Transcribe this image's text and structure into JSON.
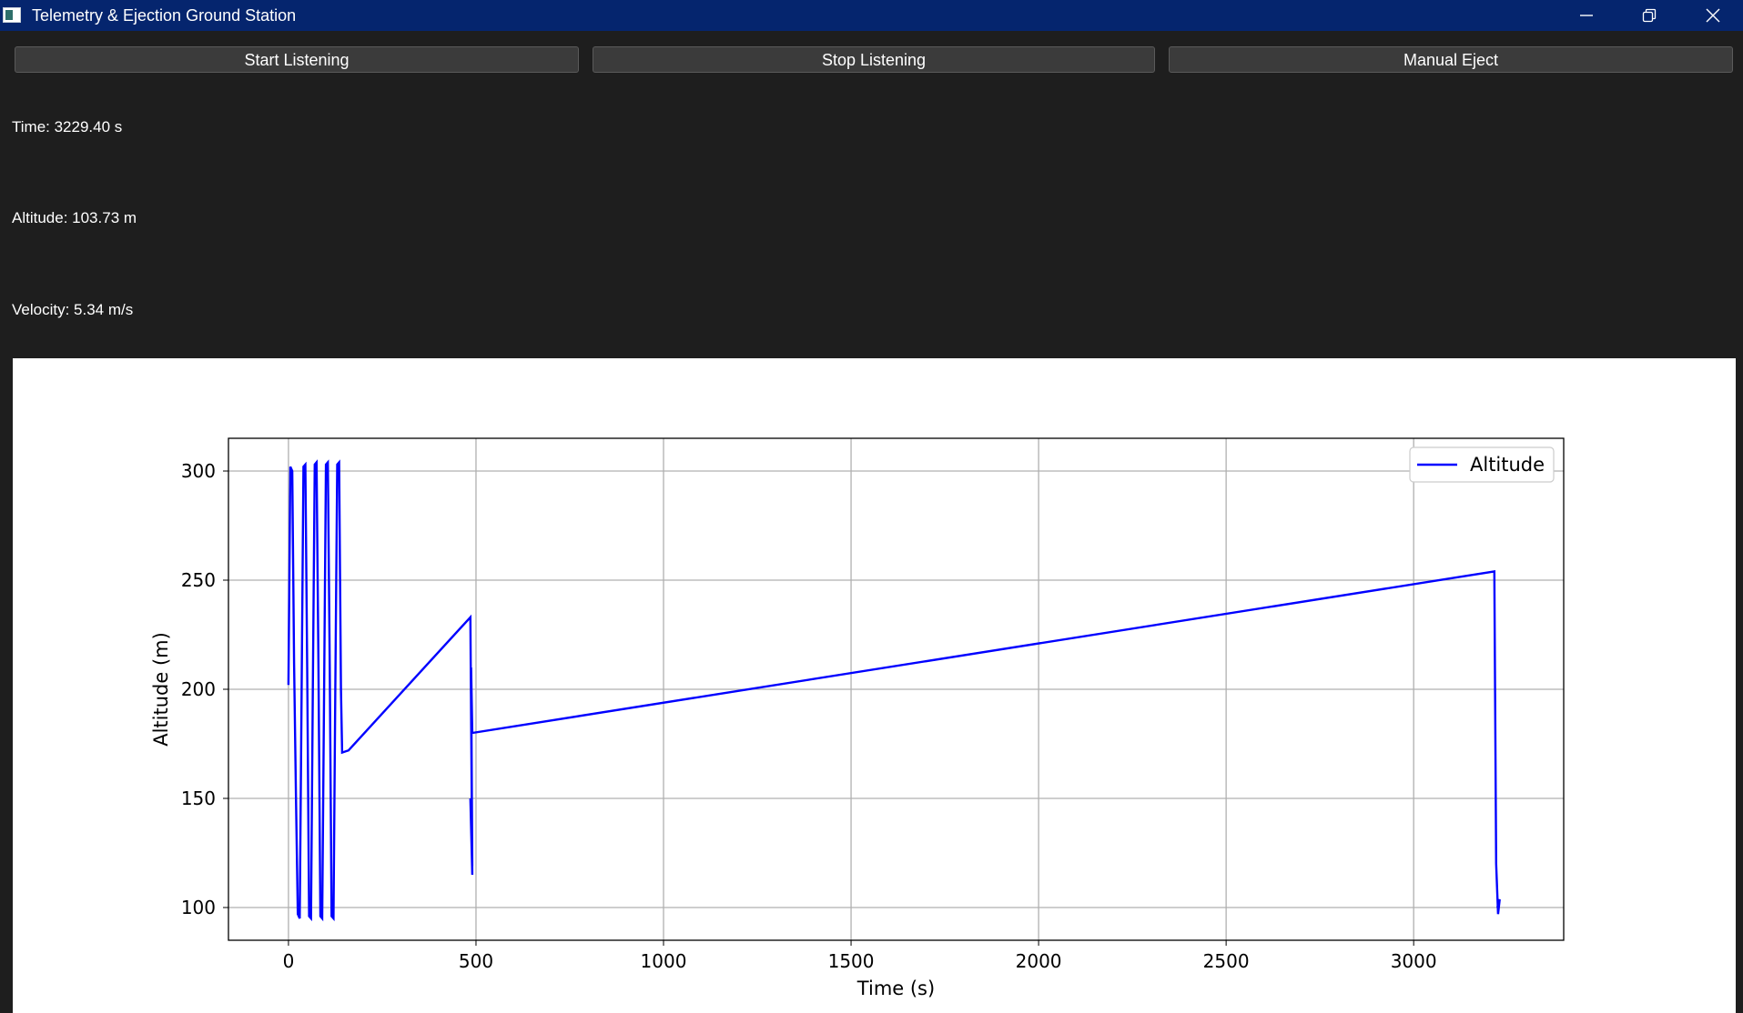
{
  "window": {
    "title": "Telemetry & Ejection Ground Station"
  },
  "toolbar": {
    "start_label": "Start Listening",
    "stop_label": "Stop Listening",
    "eject_label": "Manual Eject"
  },
  "readouts": {
    "time": "Time: 3229.40 s",
    "altitude": "Altitude: 103.73 m",
    "velocity": "Velocity: 5.34 m/s"
  },
  "colors": {
    "titlebar": "#05256e",
    "background": "#1e1e1e",
    "series": "#0000ff",
    "grid": "#b0b0b0"
  },
  "icons": {
    "app": "app-icon",
    "minimize": "minimize-icon",
    "maximize": "restore-icon",
    "close": "close-icon"
  },
  "chart_data": {
    "type": "line",
    "title": "",
    "xlabel": "Time (s)",
    "ylabel": "Altitude (m)",
    "xlim": [
      -160,
      3400
    ],
    "ylim": [
      85,
      315
    ],
    "xticks": [
      0,
      500,
      1000,
      1500,
      2000,
      2500,
      3000
    ],
    "yticks": [
      100,
      150,
      200,
      250,
      300
    ],
    "grid": true,
    "legend": "top-right",
    "series": [
      {
        "name": "Altitude",
        "color": "#0000ff",
        "x": [
          0,
          5,
          10,
          15,
          20,
          25,
          30,
          35,
          40,
          45,
          50,
          55,
          60,
          65,
          70,
          75,
          80,
          85,
          90,
          95,
          100,
          105,
          110,
          115,
          120,
          125,
          130,
          135,
          140,
          143,
          160,
          485,
          490,
          485,
          490,
          487,
          490,
          3215,
          3220,
          3225,
          3229.4,
          3223,
          3229.4
        ],
        "y": [
          202,
          302,
          300,
          212,
          150,
          97,
          95,
          200,
          302,
          303,
          210,
          96,
          95,
          200,
          303,
          304,
          210,
          96,
          95,
          200,
          303,
          304,
          210,
          96,
          95,
          200,
          303,
          304,
          200,
          171,
          172,
          233,
          115,
          150,
          119,
          210,
          180,
          254,
          120,
          97,
          103.73,
          100,
          103.73
        ]
      }
    ]
  }
}
